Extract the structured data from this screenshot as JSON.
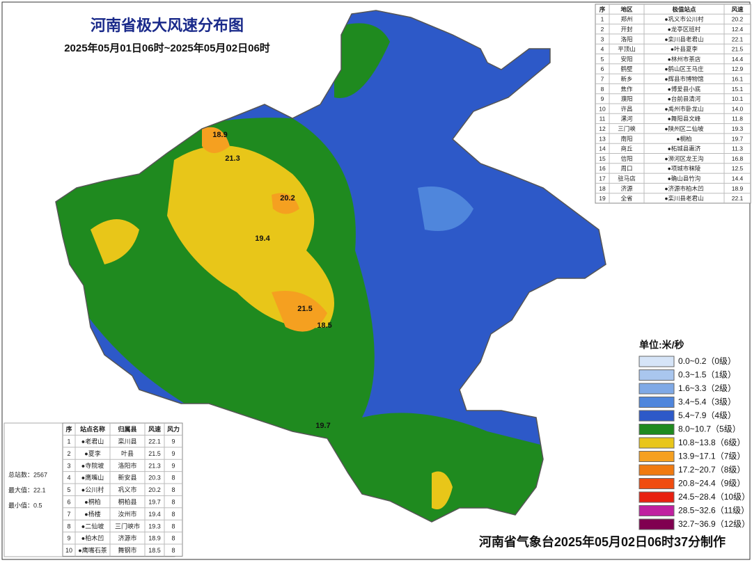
{
  "header": {
    "title": "河南省极大风速分布图",
    "subtitle": "2025年05月01日06时~2025年05月02日06时"
  },
  "city_table": {
    "columns": [
      "序",
      "地区",
      "极值站点",
      "风速"
    ],
    "rows": [
      [
        "1",
        "郑州",
        "●巩义市公川村",
        "20.2"
      ],
      [
        "2",
        "开封",
        "●龙亭区班村",
        "12.4"
      ],
      [
        "3",
        "洛阳",
        "●栾川县老君山",
        "22.1"
      ],
      [
        "4",
        "平顶山",
        "●叶县夏李",
        "21.5"
      ],
      [
        "5",
        "安阳",
        "●林州市茶店",
        "14.4"
      ],
      [
        "6",
        "鹤壁",
        "●鹤山区王马庄",
        "12.9"
      ],
      [
        "7",
        "新乡",
        "●辉县市博物馆",
        "16.1"
      ],
      [
        "8",
        "焦作",
        "●博爱县小底",
        "15.1"
      ],
      [
        "9",
        "濮阳",
        "●台前县清河",
        "10.1"
      ],
      [
        "10",
        "许昌",
        "●禹州市卧龙山",
        "14.0"
      ],
      [
        "11",
        "漯河",
        "●舞阳县文峰",
        "11.8"
      ],
      [
        "12",
        "三门峡",
        "●陕州区二仙坡",
        "19.3"
      ],
      [
        "13",
        "南阳",
        "●桐柏",
        "19.7"
      ],
      [
        "14",
        "商丘",
        "●柘城县惠济",
        "11.3"
      ],
      [
        "15",
        "信阳",
        "●浉河区龙王沟",
        "16.8"
      ],
      [
        "16",
        "周口",
        "●项城市秣陵",
        "12.5"
      ],
      [
        "17",
        "驻马店",
        "●确山县竹沟",
        "14.4"
      ],
      [
        "18",
        "济源",
        "●济源市柏木凹",
        "18.9"
      ],
      [
        "19",
        "全省",
        "●栾川县老君山",
        "22.1"
      ]
    ]
  },
  "station_table": {
    "columns": [
      "序",
      "站点名称",
      "归属县",
      "风速",
      "风力"
    ],
    "rows": [
      [
        "1",
        "●老君山",
        "栾川县",
        "22.1",
        "9"
      ],
      [
        "2",
        "●夏李",
        "叶县",
        "21.5",
        "9"
      ],
      [
        "3",
        "●寺院坡",
        "洛阳市",
        "21.3",
        "9"
      ],
      [
        "4",
        "●鹰嘴山",
        "新安县",
        "20.3",
        "8"
      ],
      [
        "5",
        "●公川村",
        "巩义市",
        "20.2",
        "8"
      ],
      [
        "6",
        "●桐柏",
        "桐柏县",
        "19.7",
        "8"
      ],
      [
        "7",
        "●杨楼",
        "汝州市",
        "19.4",
        "8"
      ],
      [
        "8",
        "●二仙坡",
        "三门峡市",
        "19.3",
        "8"
      ],
      [
        "9",
        "●柏木凹",
        "济源市",
        "18.9",
        "8"
      ],
      [
        "10",
        "●鹰嘴石茶",
        "舞钢市",
        "18.5",
        "8"
      ]
    ]
  },
  "stats": [
    "总站数：2567",
    "最大值：22.1",
    "最小值：0.5"
  ],
  "legend": {
    "title": "单位:米/秒",
    "items": [
      {
        "label": "0.0~0.2（0级）",
        "color": "#d6e4f7"
      },
      {
        "label": "0.3~1.5（1级）",
        "color": "#a9c6ee"
      },
      {
        "label": "1.6~3.3（2级）",
        "color": "#7fa9e6"
      },
      {
        "label": "3.4~5.4（3级）",
        "color": "#4f86dc"
      },
      {
        "label": "5.4~7.9（4级）",
        "color": "#2d59c8"
      },
      {
        "label": "8.0~10.7（5级）",
        "color": "#1f8a1f"
      },
      {
        "label": "10.8~13.8（6级）",
        "color": "#e8c619"
      },
      {
        "label": "13.9~17.1（7级）",
        "color": "#f5a020"
      },
      {
        "label": "17.2~20.7（8级）",
        "color": "#f07a10"
      },
      {
        "label": "20.8~24.4（9级）",
        "color": "#f04c10"
      },
      {
        "label": "24.5~28.4（10级）",
        "color": "#e82010"
      },
      {
        "label": "28.5~32.6（11级）",
        "color": "#c020a0"
      },
      {
        "label": "32.7~36.9（12级）",
        "color": "#800050"
      }
    ]
  },
  "map_labels": [
    "18.9",
    "21.3",
    "20.2",
    "19.4",
    "21.5",
    "18.5",
    "19.7"
  ],
  "footer": "河南省气象台2025年05月02日06时37分制作"
}
